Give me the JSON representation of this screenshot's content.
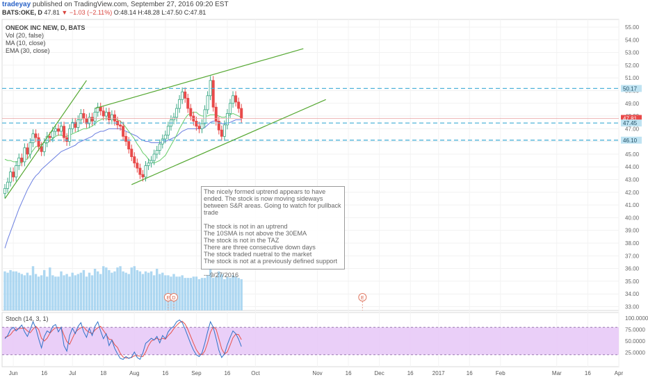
{
  "header": {
    "user": "tradeyay",
    "published": "published on TradingView.com, September 27, 2016 09:20 EST",
    "symbol": "BATS:OKE, D",
    "last": "47.81",
    "change": "▼ −1.03 (−2.11%)",
    "ohlc": "O:48.14 H:48.28 L:47.50 C:47.81"
  },
  "legend": {
    "title": "ONEOK INC NEW, D, BATS",
    "vol": "Vol (20, false)",
    "ma": "MA (10, close)",
    "ema": "EMA (30, close)",
    "stoch": "Stoch (14, 3, 1)"
  },
  "note": {
    "lines": [
      "The nicely formed uptrend appears to have",
      "ended. The stock is now moving sideways",
      "between S&R areas. Going to watch for pullback",
      "trade",
      "",
      "The stock is not in an uptrend",
      "The 10SMA is not above the 30EMA",
      "The stock is not in the TAZ",
      "There are three consecutive down days",
      "The stock traded nuetral to the market",
      "The stock is not at a previously defined support",
      "",
      "---9/27/2016"
    ]
  },
  "events": [
    {
      "label": "E",
      "x_index": 58
    },
    {
      "label": "D",
      "x_index": 60
    },
    {
      "label": "E",
      "x_index": 127
    }
  ],
  "colors": {
    "up": "#3aa884",
    "down": "#e84a4a",
    "ma": "#66cc66",
    "ema": "#6a7ee0",
    "trend": "#55a832",
    "level": "#4fb3d9",
    "stoch_k": "#2f73c8",
    "stoch_d": "#e8524a",
    "stoch_band": "#e6c7f7",
    "volume": "#9fd0ee"
  },
  "price_axis": {
    "ticks": [
      "55.00",
      "54.00",
      "53.00",
      "52.00",
      "51.00",
      "50.00",
      "49.00",
      "48.00",
      "47.00",
      "46.00",
      "45.00",
      "44.00",
      "43.00",
      "42.00",
      "41.00",
      "40.00",
      "39.00",
      "38.00",
      "37.00",
      "36.00",
      "35.00",
      "34.00",
      "33.00"
    ],
    "badges": [
      {
        "value": 50.17,
        "label": "50.17",
        "color": "#bfe3f2",
        "text_color": "#214e63"
      },
      {
        "value": 47.81,
        "label": "47.81",
        "color": "#e84a4a",
        "text_color": "#ffffff"
      },
      {
        "value": 47.45,
        "label": "47.45",
        "color": "#bfe3f2",
        "text_color": "#214e63"
      },
      {
        "value": 46.1,
        "label": "46.10",
        "color": "#bfe3f2",
        "text_color": "#214e63"
      }
    ]
  },
  "stoch_axis": {
    "ticks": [
      "100.0000",
      "75.0000",
      "50.0000",
      "25.0000"
    ]
  },
  "time_axis": {
    "labels": [
      {
        "label": "Jun",
        "idx": 3
      },
      {
        "label": "16",
        "idx": 14
      },
      {
        "label": "Jul",
        "idx": 24
      },
      {
        "label": "18",
        "idx": 35
      },
      {
        "label": "Aug",
        "idx": 46
      },
      {
        "label": "16",
        "idx": 57
      },
      {
        "label": "Sep",
        "idx": 68
      },
      {
        "label": "16",
        "idx": 79
      },
      {
        "label": "Oct",
        "idx": 89
      },
      {
        "label": "Nov",
        "idx": 111
      },
      {
        "label": "16",
        "idx": 122
      },
      {
        "label": "Dec",
        "idx": 133
      },
      {
        "label": "16",
        "idx": 144
      },
      {
        "label": "2017",
        "idx": 154
      },
      {
        "label": "16",
        "idx": 165
      },
      {
        "label": "Feb",
        "idx": 176
      },
      {
        "label": "Mar",
        "idx": 196
      },
      {
        "label": "16",
        "idx": 207
      },
      {
        "label": "Apr",
        "idx": 218
      }
    ]
  },
  "chart_data": {
    "type": "candlestick",
    "price_range": [
      32.7,
      55.6
    ],
    "trend_lines": [
      {
        "x": [
          0,
          29
        ],
        "y": [
          41.5,
          50.8
        ]
      },
      {
        "x": [
          32,
          106
        ],
        "y": [
          48.6,
          53.3
        ]
      },
      {
        "x": [
          45,
          114
        ],
        "y": [
          42.6,
          49.3
        ]
      }
    ],
    "levels": [
      50.17,
      47.45,
      46.1
    ],
    "close": [
      42.3,
      42.8,
      43.6,
      43.2,
      44.1,
      44.7,
      44.4,
      45.5,
      45.0,
      45.9,
      46.6,
      46.3,
      45.6,
      45.2,
      45.9,
      46.4,
      46.3,
      46.8,
      47.0,
      46.8,
      47.2,
      46.3,
      46.0,
      47.0,
      47.5,
      47.1,
      47.7,
      48.2,
      47.8,
      47.4,
      47.9,
      47.6,
      48.3,
      48.7,
      48.4,
      48.0,
      48.3,
      47.7,
      48.1,
      47.6,
      47.3,
      47.2,
      46.4,
      46.0,
      45.4,
      44.8,
      44.3,
      43.9,
      43.4,
      43.2,
      44.1,
      44.3,
      44.5,
      45.0,
      45.3,
      45.8,
      46.2,
      46.5,
      47.2,
      47.7,
      47.9,
      48.6,
      49.3,
      49.9,
      49.4,
      48.6,
      48.0,
      47.6,
      47.2,
      47.0,
      47.4,
      48.5,
      49.6,
      50.8,
      48.7,
      47.6,
      46.9,
      46.4,
      47.3,
      48.2,
      49.0,
      49.6,
      49.1,
      48.6,
      47.81
    ],
    "ma10": [
      44.6,
      44.5,
      44.5,
      44.4,
      44.4,
      44.4,
      44.3,
      44.6,
      44.6,
      45.0,
      45.3,
      45.6,
      45.6,
      45.8,
      45.8,
      45.9,
      46.1,
      46.2,
      46.4,
      46.5,
      46.5,
      46.4,
      46.4,
      46.5,
      46.6,
      46.7,
      46.8,
      46.9,
      47.0,
      47.0,
      47.1,
      47.2,
      47.4,
      47.6,
      47.7,
      47.8,
      47.8,
      47.8,
      47.8,
      47.8,
      47.7,
      47.6,
      47.4,
      47.1,
      46.8,
      46.5,
      46.2,
      45.8,
      45.5,
      45.1,
      44.9,
      44.6,
      44.4,
      44.3,
      44.4,
      44.5,
      44.7,
      44.9,
      45.3,
      45.7,
      46.1,
      46.5,
      47.0,
      47.4,
      47.8,
      48.1,
      48.2,
      48.3,
      48.3,
      48.1,
      48.0,
      48.0,
      48.0,
      48.1,
      48.1,
      48.1,
      48.0,
      47.9,
      47.9,
      48.0,
      48.1,
      48.2,
      48.1,
      48.0,
      47.9
    ],
    "ema30": [
      37.6,
      38.3,
      38.9,
      39.5,
      40.1,
      40.7,
      41.2,
      41.7,
      42.2,
      42.6,
      43.0,
      43.3,
      43.5,
      43.8,
      44.0,
      44.2,
      44.4,
      44.6,
      44.8,
      45.0,
      45.2,
      45.3,
      45.4,
      45.5,
      45.6,
      45.7,
      45.9,
      46.0,
      46.1,
      46.2,
      46.3,
      46.4,
      46.6,
      46.7,
      46.8,
      46.8,
      46.9,
      47.0,
      47.0,
      47.0,
      47.0,
      47.0,
      46.9,
      46.8,
      46.7,
      46.6,
      46.5,
      46.4,
      46.2,
      46.1,
      46.0,
      46.0,
      45.9,
      45.9,
      45.9,
      45.9,
      45.9,
      46.0,
      46.1,
      46.2,
      46.3,
      46.4,
      46.6,
      46.8,
      46.9,
      47.0,
      47.0,
      47.0,
      47.0,
      47.0,
      47.0,
      47.1,
      47.3,
      47.5,
      47.6,
      47.6,
      47.5,
      47.4,
      47.4,
      47.4,
      47.5,
      47.6,
      47.7,
      47.7,
      47.7
    ],
    "volume": [
      3.0,
      2.9,
      3.1,
      3.0,
      3.0,
      2.9,
      2.8,
      2.7,
      2.9,
      2.7,
      3.4,
      2.8,
      2.6,
      2.7,
      3.1,
      2.6,
      3.3,
      2.7,
      2.6,
      2.6,
      3.0,
      2.7,
      2.8,
      2.6,
      2.9,
      2.7,
      2.8,
      2.9,
      3.1,
      2.6,
      2.9,
      2.7,
      3.2,
      3.0,
      2.8,
      3.4,
      3.3,
      3.1,
      2.9,
      3.0,
      3.3,
      3.4,
      3.0,
      2.9,
      2.8,
      3.3,
      3.4,
      3.1,
      3.0,
      2.8,
      3.0,
      2.9,
      3.0,
      2.7,
      3.2,
      2.8,
      2.9,
      2.7,
      2.7,
      2.6,
      2.8,
      2.6,
      2.6,
      2.7,
      2.5,
      2.5,
      2.5,
      2.6,
      2.6,
      2.4,
      2.5,
      2.5,
      2.7,
      3.3,
      2.5,
      2.6,
      3.0,
      2.8,
      2.4,
      2.6,
      2.5,
      2.7,
      2.6,
      2.5,
      2.4
    ],
    "stoch_k": [
      55,
      62,
      75,
      80,
      72,
      78,
      85,
      70,
      60,
      75,
      92,
      78,
      55,
      35,
      60,
      72,
      68,
      82,
      86,
      70,
      80,
      40,
      28,
      62,
      78,
      66,
      82,
      90,
      70,
      58,
      78,
      62,
      82,
      92,
      72,
      55,
      66,
      40,
      52,
      34,
      22,
      12,
      10,
      16,
      12,
      15,
      26,
      14,
      10,
      24,
      45,
      50,
      56,
      52,
      60,
      46,
      62,
      55,
      70,
      78,
      82,
      92,
      96,
      90,
      76,
      60,
      44,
      30,
      20,
      16,
      24,
      45,
      70,
      92,
      80,
      56,
      30,
      14,
      22,
      42,
      58,
      72,
      66,
      54,
      38
    ],
    "stoch_d": [
      58,
      60,
      64,
      72,
      76,
      77,
      78,
      78,
      72,
      68,
      76,
      82,
      75,
      56,
      50,
      56,
      67,
      74,
      79,
      79,
      79,
      63,
      49,
      43,
      56,
      69,
      75,
      79,
      81,
      73,
      69,
      66,
      74,
      79,
      82,
      73,
      64,
      54,
      53,
      42,
      36,
      23,
      15,
      13,
      13,
      14,
      18,
      18,
      17,
      16,
      26,
      40,
      50,
      53,
      56,
      53,
      56,
      54,
      62,
      68,
      77,
      84,
      90,
      93,
      87,
      75,
      60,
      45,
      31,
      22,
      20,
      28,
      46,
      69,
      81,
      76,
      55,
      33,
      22,
      26,
      41,
      57,
      65,
      64,
      53
    ]
  }
}
